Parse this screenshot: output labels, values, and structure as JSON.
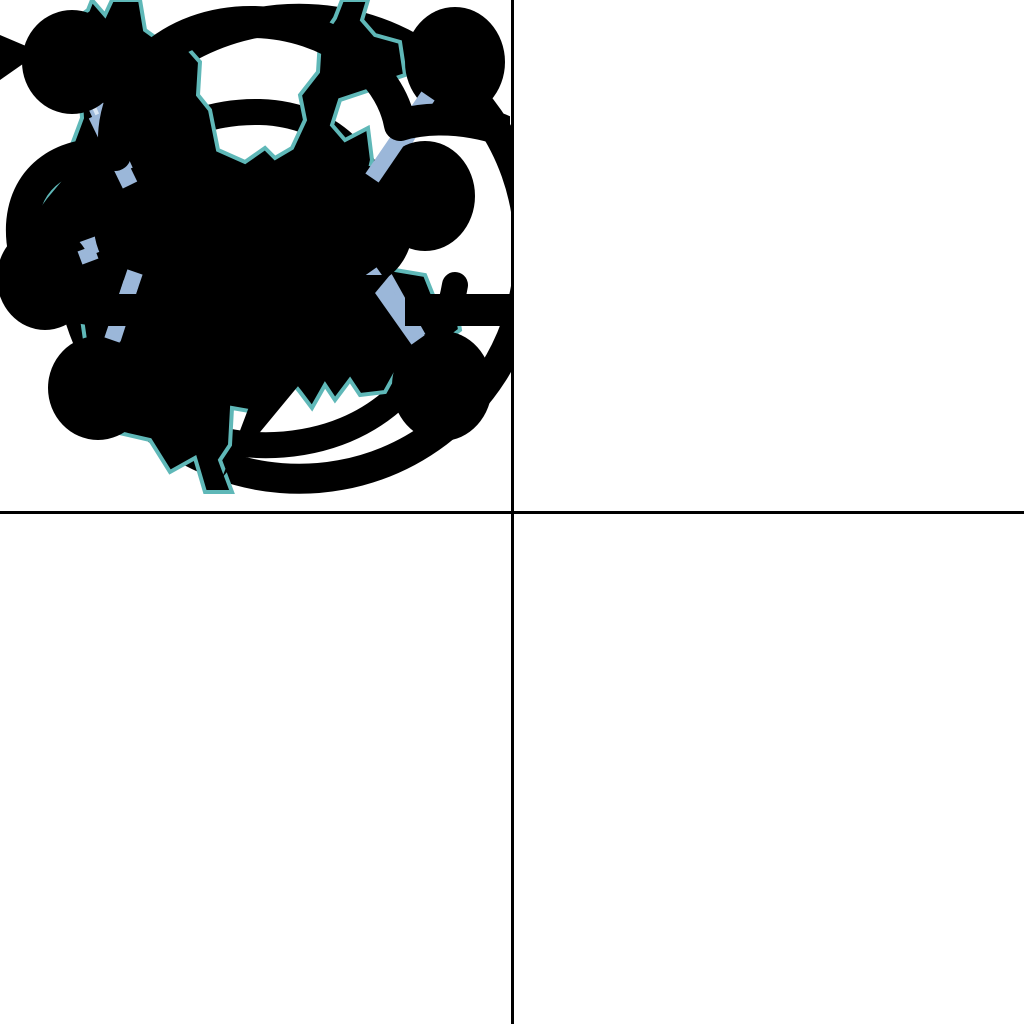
{
  "panels": [
    {
      "name": "spiral-swirl-icon",
      "icon": "spiral"
    },
    {
      "name": "region-map-silhouette",
      "icon": "map-outline"
    },
    {
      "name": "molecule-ethane-icon",
      "icon": "molecule"
    },
    {
      "name": "thunderstorm-cloud-icon",
      "icon": "cloud-lightning"
    }
  ],
  "colors": {
    "background": "#ffffff",
    "ink": "#000000",
    "map_outline": "#5fb8b8",
    "bond": "#9bb7d9",
    "bond_highlight": "#d9e6f5"
  }
}
